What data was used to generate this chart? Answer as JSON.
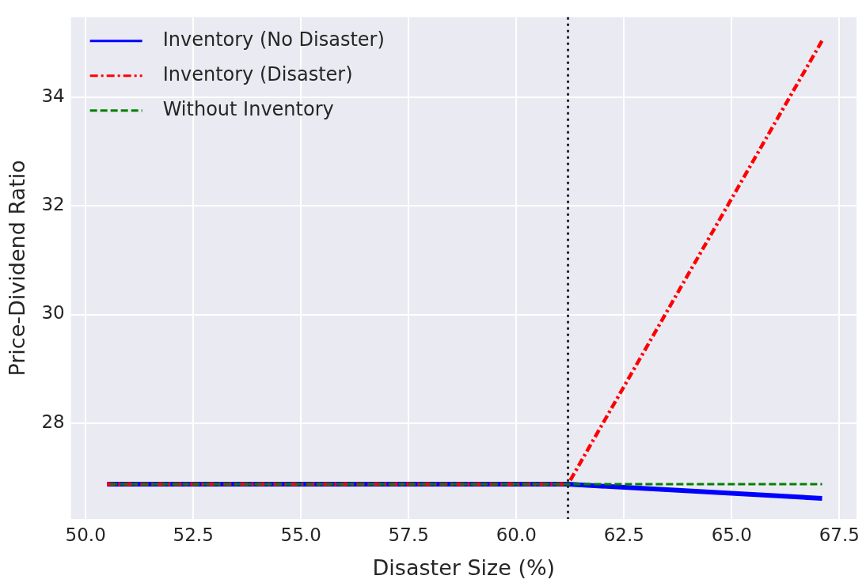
{
  "chart_data": {
    "type": "line",
    "xlabel": "Disaster Size (%)",
    "ylabel": "Price-Dividend Ratio",
    "xlim": [
      49.66,
      67.9
    ],
    "ylim": [
      26.23,
      35.48
    ],
    "xticks": [
      {
        "value": 50,
        "label": "50.0"
      },
      52.5,
      {
        "value": 55,
        "label": "55.0"
      },
      57.5,
      {
        "value": 60,
        "label": "60.0"
      },
      62.5,
      {
        "value": 65,
        "label": "65.0"
      },
      67.5
    ],
    "yticks": [
      28,
      30,
      32,
      34
    ],
    "grid": true,
    "legend": "top left",
    "marker": "none",
    "series": [
      {
        "name": "Inventory (No Disaster)",
        "color": "#0000ff",
        "line_style": "solid",
        "x": [
          50.5,
          61.2,
          67.1
        ],
        "values": [
          26.87,
          26.87,
          26.61
        ]
      },
      {
        "name": "Inventory (Disaster)",
        "color": "#ff0000",
        "line_style": "dashdot",
        "x": [
          50.5,
          61.2,
          67.1
        ],
        "values": [
          26.87,
          26.87,
          35.05
        ]
      },
      {
        "name": "Without Inventory",
        "color": "#008000",
        "line_style": "dashed",
        "x": [
          50.5,
          61.2,
          67.1
        ],
        "values": [
          26.87,
          26.87,
          26.87
        ]
      }
    ],
    "ref_lines": [
      {
        "axis": "x",
        "value": 61.2,
        "color": "#262626",
        "line_style": "dotted"
      }
    ]
  }
}
